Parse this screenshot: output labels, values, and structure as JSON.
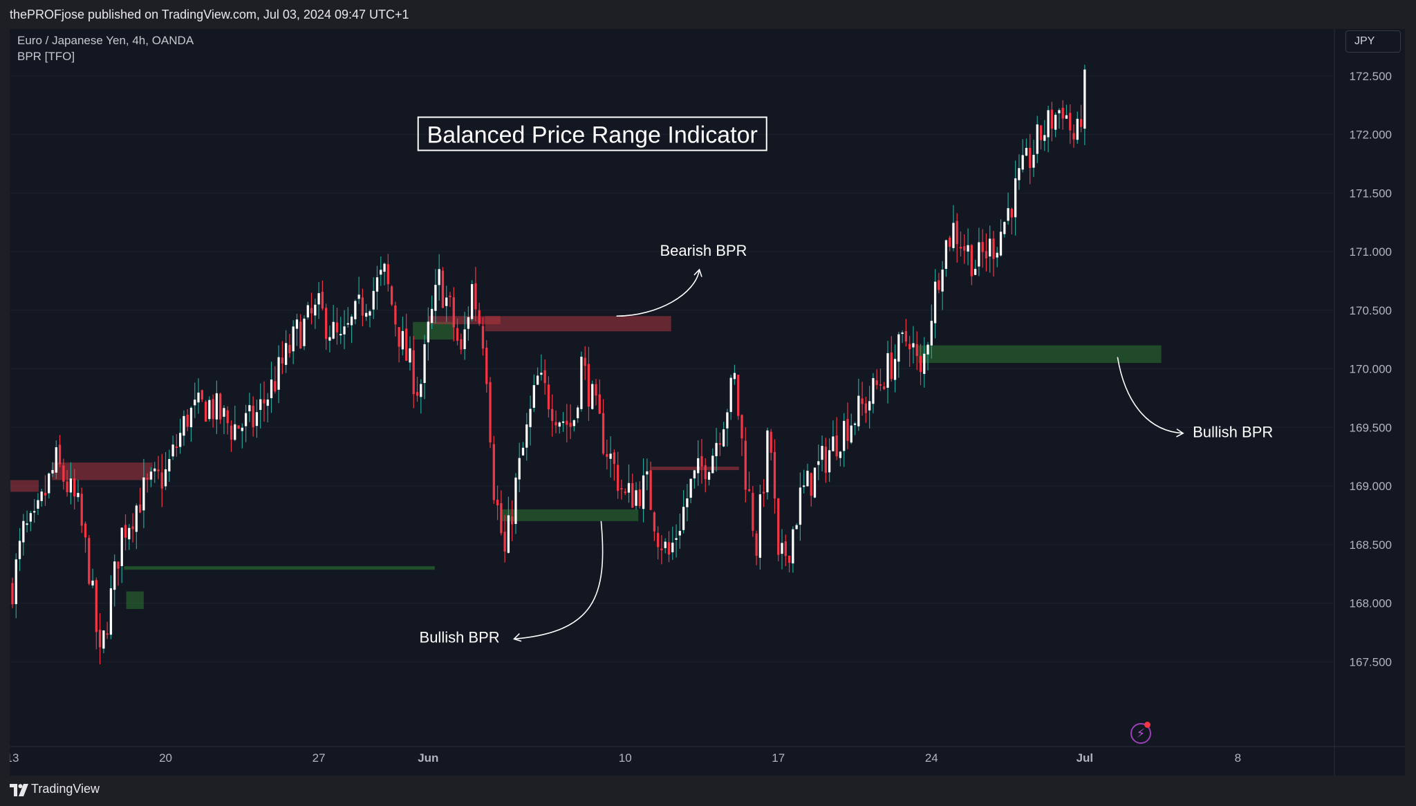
{
  "header": {
    "published_text": "thePROFjose published on TradingView.com, Jul 03, 2024 09:47 UTC+1"
  },
  "legend": {
    "symbol": "Euro / Japanese Yen, 4h, OANDA",
    "indicator": "BPR [TFO]"
  },
  "currency_button": "JPY",
  "footer": {
    "brand": "TradingView"
  },
  "colors": {
    "bull_candle": "#ffffff",
    "bear_candle": "#f23645",
    "bull_wick": "#26a69a",
    "bull_zone": "#2e7d32",
    "bear_zone": "#b7373f",
    "background": "#131722"
  },
  "icons": [
    "tradingview-logo-icon",
    "lightning-icon"
  ],
  "chart_data": {
    "type": "candlestick",
    "title": "Balanced Price Range Indicator",
    "symbol": "EURJPY",
    "timeframe": "4h",
    "y_axis": {
      "side": "right",
      "ylim": [
        167.0,
        172.9
      ],
      "ticks": [
        "172.500",
        "172.000",
        "171.500",
        "171.000",
        "170.500",
        "170.000",
        "169.500",
        "169.000",
        "168.500",
        "168.000",
        "167.500"
      ]
    },
    "x_axis": {
      "range": [
        "May 13",
        "Jul 12"
      ],
      "ticks": [
        {
          "label": "13",
          "date": "May 13"
        },
        {
          "label": "20",
          "date": "May 20"
        },
        {
          "label": "27",
          "date": "May 27"
        },
        {
          "label": "Jun",
          "date": "Jun 1",
          "bold": true
        },
        {
          "label": "10",
          "date": "Jun 10"
        },
        {
          "label": "17",
          "date": "Jun 17"
        },
        {
          "label": "24",
          "date": "Jun 24"
        },
        {
          "label": "Jul",
          "date": "Jul 1",
          "bold": true
        },
        {
          "label": "8",
          "date": "Jul 8"
        }
      ]
    },
    "path_points": [
      [
        "May 13",
        168.15
      ],
      [
        "May 13.5",
        168.6
      ],
      [
        "May 14",
        168.65
      ],
      [
        "May 14.6",
        169.0
      ],
      [
        "May 15",
        169.2
      ],
      [
        "May 16",
        168.8
      ],
      [
        "May 16.5",
        168.3
      ],
      [
        "May 17",
        167.5
      ],
      [
        "May 18",
        168.6
      ],
      [
        "May 19",
        168.95
      ],
      [
        "May 20",
        169.1
      ],
      [
        "May 21",
        169.6
      ],
      [
        "May 22",
        169.7
      ],
      [
        "May 23",
        169.5
      ],
      [
        "May 24",
        169.55
      ],
      [
        "May 25",
        169.9
      ],
      [
        "May 26",
        170.3
      ],
      [
        "May 27",
        170.5
      ],
      [
        "May 28",
        170.2
      ],
      [
        "May 29",
        170.55
      ],
      [
        "May 30",
        170.8
      ],
      [
        "May 30.6",
        170.35
      ],
      [
        "May 31",
        170.1
      ],
      [
        "May 31.6",
        169.8
      ],
      [
        "Jun 1",
        170.3
      ],
      [
        "Jun 1.5",
        170.75
      ],
      [
        "Jun 2",
        170.5
      ],
      [
        "Jun 2.5",
        170.1
      ],
      [
        "Jun 3",
        170.7
      ],
      [
        "Jun 3.6",
        170.2
      ],
      [
        "Jun 4",
        169.0
      ],
      [
        "Jun 4.5",
        168.4
      ],
      [
        "Jun 5",
        169.0
      ],
      [
        "Jun 6",
        169.9
      ],
      [
        "Jun 7",
        169.6
      ],
      [
        "Jun 7.6",
        169.5
      ],
      [
        "Jun 8",
        170.05
      ],
      [
        "Jun 9",
        169.4
      ],
      [
        "Jun 10",
        168.9
      ],
      [
        "Jun 11",
        169.0
      ],
      [
        "Jun 11.5",
        168.6
      ],
      [
        "Jun 12",
        168.4
      ],
      [
        "Jun 13",
        169.0
      ],
      [
        "Jun 14",
        169.3
      ],
      [
        "Jun 15",
        169.9
      ],
      [
        "Jun 15.5",
        169.1
      ],
      [
        "Jun 16",
        168.5
      ],
      [
        "Jun 16.6",
        169.5
      ],
      [
        "Jun 17",
        168.3
      ],
      [
        "Jun 17.5",
        168.5
      ],
      [
        "Jun 18",
        168.9
      ],
      [
        "Jun 19",
        169.2
      ],
      [
        "Jun 20",
        169.5
      ],
      [
        "Jun 21",
        169.7
      ],
      [
        "Jun 22",
        170.0
      ],
      [
        "Jun 23",
        170.3
      ],
      [
        "Jun 23.5",
        169.9
      ],
      [
        "Jun 24",
        170.5
      ],
      [
        "Jun 24.5",
        171.0
      ],
      [
        "Jun 25",
        171.2
      ],
      [
        "Jun 26",
        170.9
      ],
      [
        "Jun 27",
        171.1
      ],
      [
        "Jun 28",
        171.6
      ],
      [
        "Jun 29",
        172.0
      ],
      [
        "Jun 30",
        172.25
      ],
      [
        "Jun 30.6",
        171.9
      ],
      [
        "Jul 1",
        172.4
      ]
    ],
    "bpr_zones": [
      {
        "type": "bearish",
        "start": "May 12.9",
        "end": "May 14.2",
        "top": 169.05,
        "bottom": 168.95
      },
      {
        "type": "bearish",
        "start": "May 14.8",
        "end": "May 19.4",
        "top": 169.2,
        "bottom": 169.05
      },
      {
        "type": "bullish",
        "start": "May 18.2",
        "end": "May 19",
        "top": 168.1,
        "bottom": 167.95
      },
      {
        "type": "bullish-line",
        "start": "May 18.1",
        "end": "Jun 1.3",
        "level": 168.3
      },
      {
        "type": "bullish",
        "start": "May 31.3",
        "end": "Jun 2.2",
        "top": 170.4,
        "bottom": 170.25
      },
      {
        "type": "bearish",
        "start": "Jun 1",
        "end": "Jun 4.3",
        "top": 170.45,
        "bottom": 170.38
      },
      {
        "type": "bearish",
        "start": "Jun 3.6",
        "end": "Jun 12.1",
        "top": 170.45,
        "bottom": 170.32
      },
      {
        "type": "bullish",
        "start": "Jun 4.3",
        "end": "Jun 10.6",
        "top": 168.8,
        "bottom": 168.7
      },
      {
        "type": "bearish-line",
        "start": "Jun 11.2",
        "end": "Jun 15.2",
        "level": 169.15
      },
      {
        "type": "bullish",
        "start": "Jun 23.4",
        "end": "Jul 4.5",
        "top": 170.2,
        "bottom": 170.05
      }
    ],
    "annotations": [
      {
        "text": "Bearish BPR",
        "anchor": [
          "Jun 12",
          170.4
        ]
      },
      {
        "text": "Bullish BPR",
        "anchor": [
          "Jun 6",
          168.8
        ]
      },
      {
        "text": "Bullish BPR",
        "anchor": [
          "Jul 4.5",
          170.0
        ]
      }
    ]
  }
}
